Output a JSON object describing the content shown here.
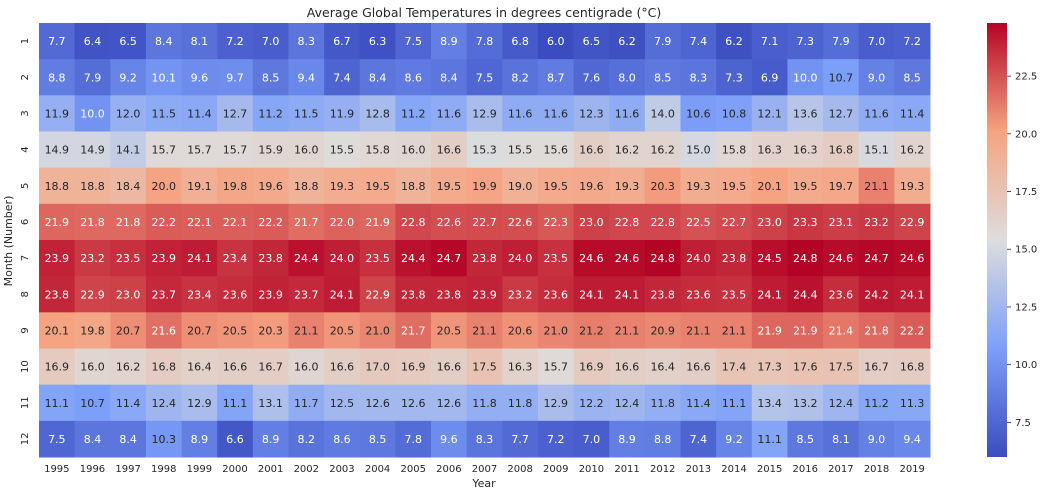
{
  "chart_data": {
    "type": "heatmap",
    "title": "Average Global Temperatures in degrees centigrade (°C)",
    "xlabel": "Year",
    "ylabel": "Month (Number)",
    "x": [
      "1995",
      "1996",
      "1997",
      "1998",
      "1999",
      "2000",
      "2001",
      "2002",
      "2003",
      "2004",
      "2005",
      "2006",
      "2007",
      "2008",
      "2009",
      "2010",
      "2011",
      "2012",
      "2013",
      "2014",
      "2015",
      "2016",
      "2017",
      "2018",
      "2019"
    ],
    "y": [
      "1",
      "2",
      "3",
      "4",
      "5",
      "6",
      "7",
      "8",
      "9",
      "10",
      "11",
      "12"
    ],
    "colormap": "coolwarm",
    "vmin": 6.0,
    "vmax": 24.8,
    "colorbar_ticks": [
      "7.5",
      "10.0",
      "12.5",
      "15.0",
      "17.5",
      "20.0",
      "22.5"
    ],
    "values": [
      [
        7.7,
        6.4,
        6.5,
        8.4,
        8.1,
        7.2,
        7.0,
        8.3,
        6.7,
        6.3,
        7.5,
        8.9,
        7.8,
        6.8,
        6.0,
        6.5,
        6.2,
        7.9,
        7.4,
        6.2,
        7.1,
        7.3,
        7.9,
        7.0,
        7.2
      ],
      [
        8.8,
        7.9,
        9.2,
        10.1,
        9.6,
        9.7,
        8.5,
        9.4,
        7.4,
        8.4,
        8.6,
        8.4,
        7.5,
        8.2,
        8.7,
        7.6,
        8.0,
        8.5,
        8.3,
        7.3,
        6.9,
        10.0,
        10.7,
        9.0,
        8.5
      ],
      [
        11.9,
        10.0,
        12.0,
        11.5,
        11.4,
        12.7,
        11.2,
        11.5,
        11.9,
        12.8,
        11.2,
        11.6,
        12.9,
        11.6,
        11.6,
        12.3,
        11.6,
        14.0,
        10.6,
        10.8,
        12.1,
        13.6,
        12.7,
        11.6,
        11.4
      ],
      [
        14.9,
        14.9,
        14.1,
        15.7,
        15.7,
        15.7,
        15.9,
        16.0,
        15.5,
        15.8,
        16.0,
        16.6,
        15.3,
        15.5,
        15.6,
        16.6,
        16.2,
        16.2,
        15.0,
        15.8,
        16.3,
        16.3,
        16.8,
        15.1,
        16.2
      ],
      [
        18.8,
        18.8,
        18.4,
        20.0,
        19.1,
        19.8,
        19.6,
        18.8,
        19.3,
        19.5,
        18.8,
        19.5,
        19.9,
        19.0,
        19.5,
        19.6,
        19.3,
        20.3,
        19.3,
        19.5,
        20.1,
        19.5,
        19.7,
        21.1,
        19.3
      ],
      [
        21.9,
        21.8,
        21.8,
        22.2,
        22.1,
        22.1,
        22.2,
        21.7,
        22.0,
        21.9,
        22.8,
        22.6,
        22.7,
        22.6,
        22.3,
        23.0,
        22.8,
        22.8,
        22.5,
        22.7,
        23.0,
        23.3,
        23.1,
        23.2,
        22.9
      ],
      [
        23.9,
        23.2,
        23.5,
        23.9,
        24.1,
        23.4,
        23.8,
        24.4,
        24.0,
        23.5,
        24.4,
        24.7,
        23.8,
        24.0,
        23.5,
        24.6,
        24.6,
        24.8,
        24.0,
        23.8,
        24.5,
        24.8,
        24.6,
        24.7,
        24.6
      ],
      [
        23.8,
        22.9,
        23.0,
        23.7,
        23.4,
        23.6,
        23.9,
        23.7,
        24.1,
        22.9,
        23.8,
        23.8,
        23.9,
        23.2,
        23.6,
        24.1,
        24.1,
        23.8,
        23.6,
        23.5,
        24.1,
        24.4,
        23.6,
        24.2,
        24.1
      ],
      [
        20.1,
        19.8,
        20.7,
        21.6,
        20.7,
        20.5,
        20.3,
        21.1,
        20.5,
        21.0,
        21.7,
        20.5,
        21.1,
        20.6,
        21.0,
        21.2,
        21.1,
        20.9,
        21.1,
        21.1,
        21.9,
        21.9,
        21.4,
        21.8,
        22.2
      ],
      [
        16.9,
        16.0,
        16.2,
        16.8,
        16.4,
        16.6,
        16.7,
        16.0,
        16.6,
        17.0,
        16.9,
        16.6,
        17.5,
        16.3,
        15.7,
        16.9,
        16.6,
        16.4,
        16.6,
        17.4,
        17.3,
        17.6,
        17.5,
        16.7,
        16.8
      ],
      [
        11.1,
        10.7,
        11.4,
        12.4,
        12.9,
        11.1,
        13.1,
        11.7,
        12.5,
        12.6,
        12.6,
        12.6,
        11.8,
        11.8,
        12.9,
        12.2,
        12.4,
        11.8,
        11.4,
        11.1,
        13.4,
        13.2,
        12.4,
        11.2,
        11.3
      ],
      [
        7.5,
        8.4,
        8.4,
        10.3,
        8.9,
        6.6,
        8.9,
        8.2,
        8.6,
        8.5,
        7.8,
        9.6,
        8.3,
        7.7,
        7.2,
        7.0,
        8.9,
        8.8,
        7.4,
        9.2,
        11.1,
        8.5,
        8.1,
        9.0,
        9.4
      ]
    ]
  }
}
